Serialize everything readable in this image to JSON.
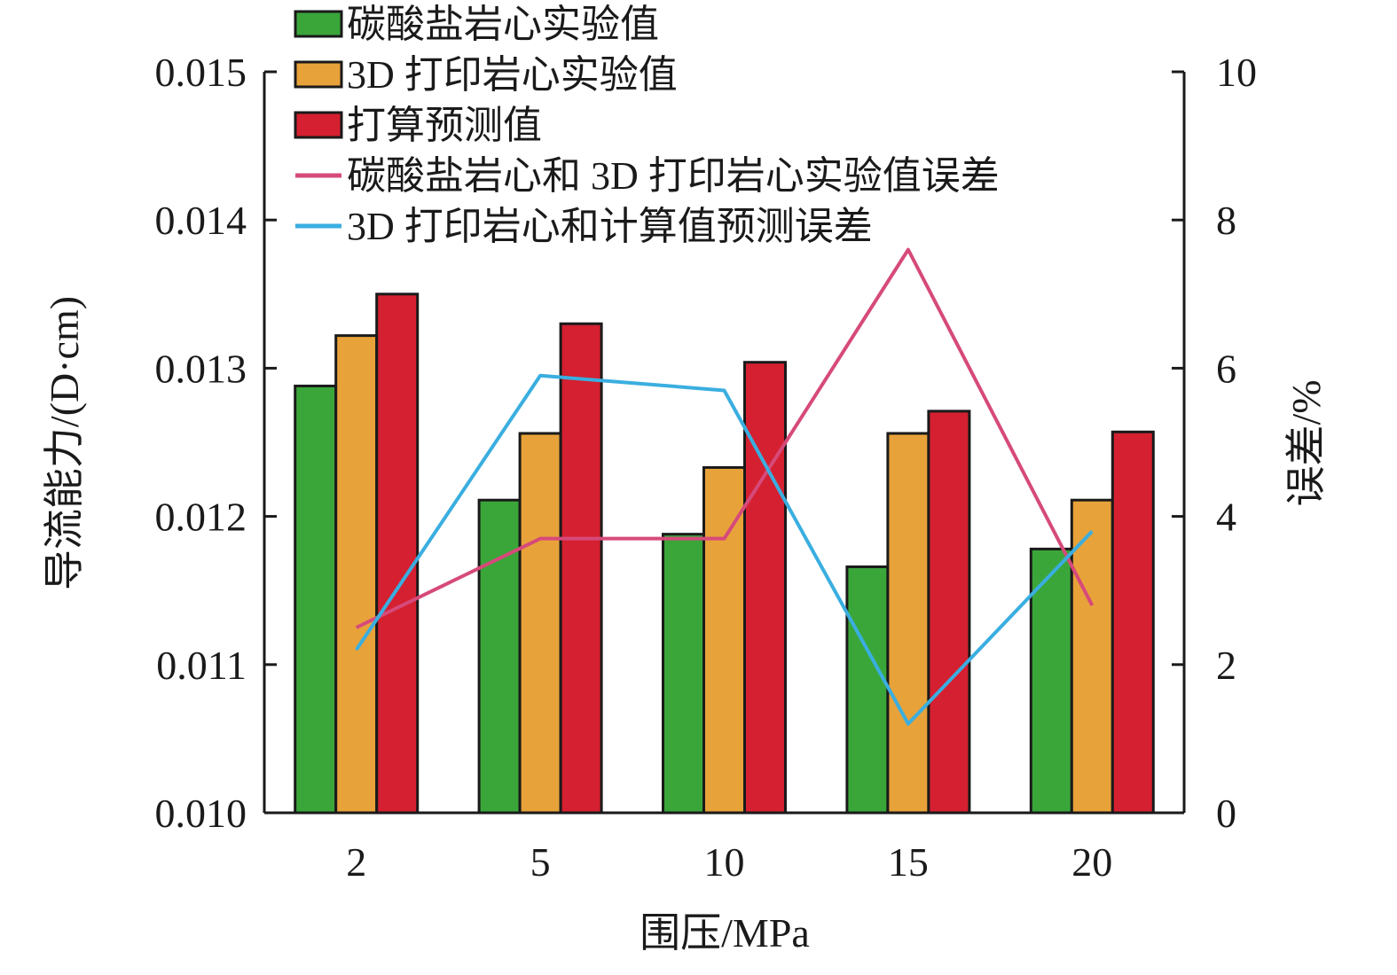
{
  "chart_data": {
    "type": "bar",
    "categories": [
      "2",
      "5",
      "10",
      "15",
      "20"
    ],
    "xlabel": "围压/MPa",
    "ylabel": "导流能力/(D·cm)",
    "ylabel_right": "误差/%",
    "ylim": [
      0.01,
      0.015
    ],
    "ylim_right": [
      0,
      10
    ],
    "yticks": [
      "0.010",
      "0.011",
      "0.012",
      "0.013",
      "0.014",
      "0.015"
    ],
    "yticks_right": [
      "0",
      "2",
      "4",
      "6",
      "8",
      "10"
    ],
    "legend_position": "top",
    "series": [
      {
        "name": "碳酸盐岩心实验值",
        "kind": "bar",
        "axis": "left",
        "color": "#3aa63a",
        "values": [
          0.01288,
          0.01211,
          0.01188,
          0.01166,
          0.01178
        ]
      },
      {
        "name": "3D 打印岩心实验值",
        "kind": "bar",
        "axis": "left",
        "color": "#e8a23a",
        "values": [
          0.01322,
          0.01256,
          0.01233,
          0.01256,
          0.01211
        ]
      },
      {
        "name": "打算预测值",
        "kind": "bar",
        "axis": "left",
        "color": "#d42030",
        "values": [
          0.0135,
          0.0133,
          0.01304,
          0.01271,
          0.01257
        ]
      },
      {
        "name": "碳酸盐岩心和 3D 打印岩心实验值误差",
        "kind": "line",
        "axis": "right",
        "color": "#d64a7a",
        "values": [
          2.5,
          3.7,
          3.7,
          7.6,
          2.8
        ]
      },
      {
        "name": "3D 打印岩心和计算值预测误差",
        "kind": "line",
        "axis": "right",
        "color": "#3aaee0",
        "values": [
          2.2,
          5.9,
          5.7,
          1.2,
          3.8
        ]
      }
    ]
  }
}
